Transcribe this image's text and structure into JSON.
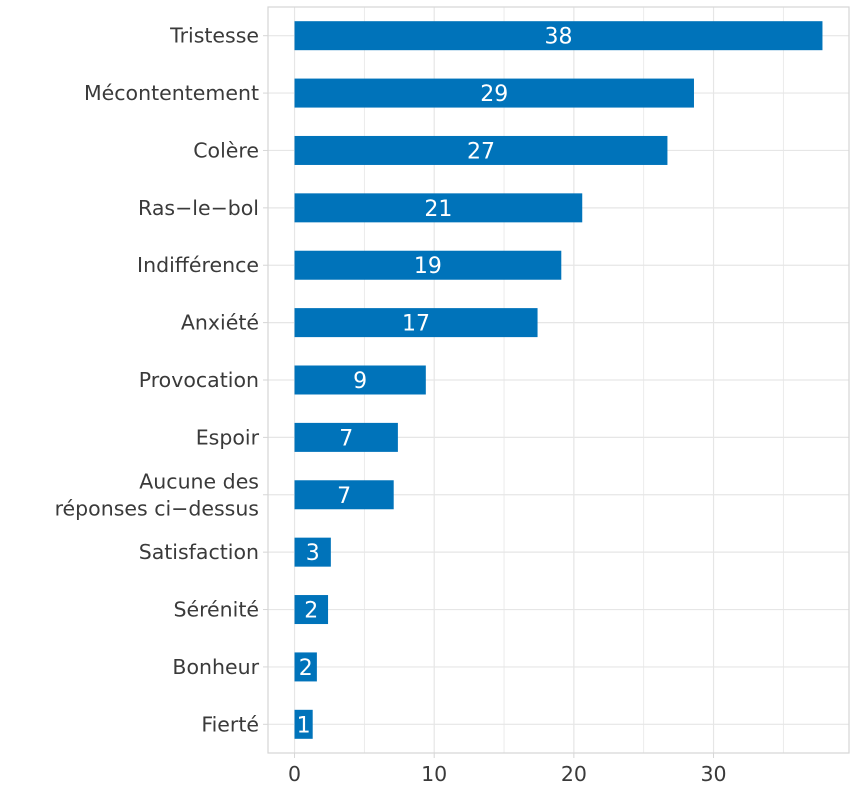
{
  "chart_data": {
    "type": "bar",
    "orientation": "horizontal",
    "categories": [
      "Tristesse",
      "Mécontentement",
      "Colère",
      "Ras−le−bol",
      "Indifférence",
      "Anxiété",
      "Provocation",
      "Espoir",
      "Aucune des réponses ci−dessus",
      "Satisfaction",
      "Sérénité",
      "Bonheur",
      "Fierté"
    ],
    "category_lines": [
      [
        "Tristesse"
      ],
      [
        "Mécontentement"
      ],
      [
        "Colère"
      ],
      [
        "Ras−le−bol"
      ],
      [
        "Indifférence"
      ],
      [
        "Anxiété"
      ],
      [
        "Provocation"
      ],
      [
        "Espoir"
      ],
      [
        "Aucune des",
        "réponses ci−dessus"
      ],
      [
        "Satisfaction"
      ],
      [
        "Sérénité"
      ],
      [
        "Bonheur"
      ],
      [
        "Fierté"
      ]
    ],
    "values": [
      37.8,
      28.6,
      26.7,
      20.6,
      19.1,
      17.4,
      9.4,
      7.4,
      7.1,
      2.6,
      2.4,
      1.6,
      1.3
    ],
    "data_labels": [
      "38",
      "29",
      "27",
      "21",
      "19",
      "17",
      "9",
      "7",
      "7",
      "3",
      "2",
      "2",
      "1"
    ],
    "x_ticks": [
      0,
      10,
      20,
      30
    ],
    "x_tick_labels": [
      "0",
      "10",
      "20",
      "30"
    ],
    "xlim": [
      -1.9,
      39.7
    ],
    "title": "",
    "xlabel": "",
    "ylabel": "",
    "grid": true,
    "legend": "none",
    "colors": {
      "bar": "#0073BA",
      "grid": "#E6E6E6",
      "panel_border": "#D6D6D6",
      "axis_text": "#3A3A3A",
      "bar_label": "#FFFFFF"
    }
  }
}
